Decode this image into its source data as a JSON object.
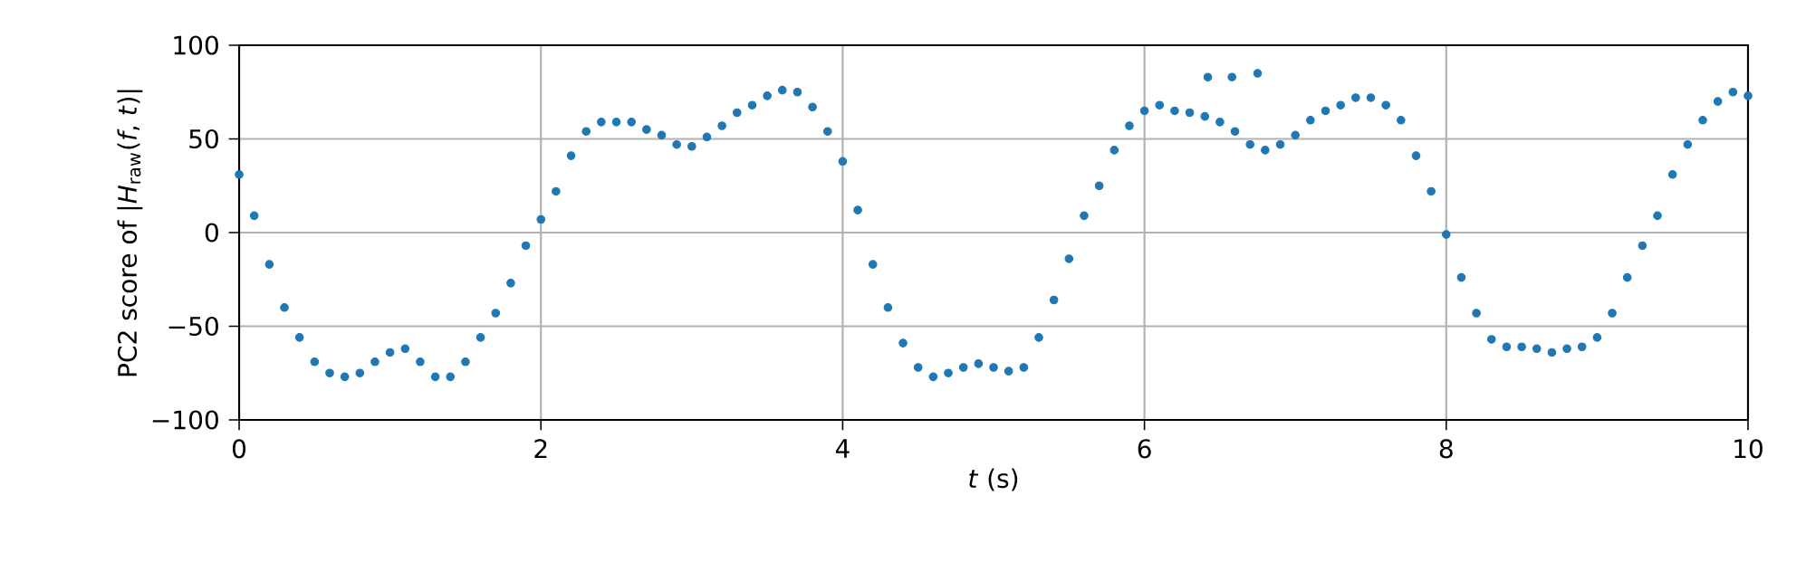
{
  "chart_data": {
    "type": "scatter",
    "xlabel": "*t* (s)",
    "ylabel": "PC2 score of |*H*$_{raw}$(*f*, *t*)|",
    "xlim": [
      0,
      10
    ],
    "ylim": [
      -100,
      100
    ],
    "xticks": [
      0,
      2,
      4,
      6,
      8,
      10
    ],
    "yticks": [
      {
        "value": -100,
        "label": "−100"
      },
      {
        "value": -50,
        "label": "−50"
      },
      0,
      50,
      100
    ],
    "grid": true,
    "marker": "circle",
    "series": [
      {
        "color": "#1f77b4",
        "x": [
          0,
          0.1,
          0.2,
          0.3,
          0.4,
          0.5,
          0.6,
          0.7,
          0.8,
          0.9,
          1.0,
          1.1,
          1.2,
          1.3,
          1.4,
          1.5,
          1.6,
          1.7,
          1.8,
          1.9,
          2.0,
          2.1,
          2.2,
          2.3,
          2.4,
          2.5,
          2.6,
          2.7,
          2.8,
          2.9,
          3.0,
          3.1,
          3.2,
          3.3,
          3.4,
          3.5,
          3.6,
          3.7,
          3.8,
          3.9,
          4.0,
          4.1,
          4.2,
          4.3,
          4.4,
          4.5,
          4.6,
          4.7,
          4.8,
          4.9,
          5.0,
          5.1,
          5.2,
          5.3,
          5.4,
          5.5,
          5.6,
          5.7,
          5.8,
          5.9,
          6.0,
          6.1,
          6.2,
          6.3,
          6.4,
          6.42,
          6.5,
          6.58,
          6.6,
          6.7,
          6.75,
          6.8,
          6.9,
          7.0,
          7.1,
          7.2,
          7.3,
          7.4,
          7.5,
          7.6,
          7.7,
          7.8,
          7.9,
          8.0,
          8.1,
          8.2,
          8.3,
          8.4,
          8.5,
          8.6,
          8.7,
          8.8,
          8.9,
          9.0,
          9.1,
          9.2,
          9.3,
          9.4,
          9.5,
          9.6,
          9.7,
          9.8,
          9.9,
          10.0
        ],
        "values": [
          31,
          9,
          -17,
          -40,
          -56,
          -69,
          -75,
          -77,
          -75,
          -69,
          -64,
          -62,
          -69,
          -77,
          -77,
          -69,
          -56,
          -43,
          -27,
          -7,
          7,
          22,
          41,
          54,
          59,
          59,
          59,
          55,
          52,
          47,
          46,
          51,
          57,
          64,
          68,
          73,
          76,
          75,
          67,
          54,
          38,
          12,
          -17,
          -40,
          -59,
          -72,
          -77,
          -75,
          -72,
          -70,
          -72,
          -74,
          -72,
          -56,
          -36,
          -14,
          9,
          25,
          44,
          57,
          65,
          68,
          65,
          64,
          62,
          83,
          59,
          83,
          54,
          47,
          85,
          44,
          47,
          52,
          60,
          65,
          68,
          72,
          72,
          68,
          60,
          41,
          22,
          -1,
          -24,
          -43,
          -57,
          -61,
          -61,
          -62,
          -64,
          -62,
          -61,
          -56,
          -43,
          -24,
          -7,
          9,
          31,
          47,
          60,
          70,
          75,
          73
        ]
      }
    ]
  }
}
